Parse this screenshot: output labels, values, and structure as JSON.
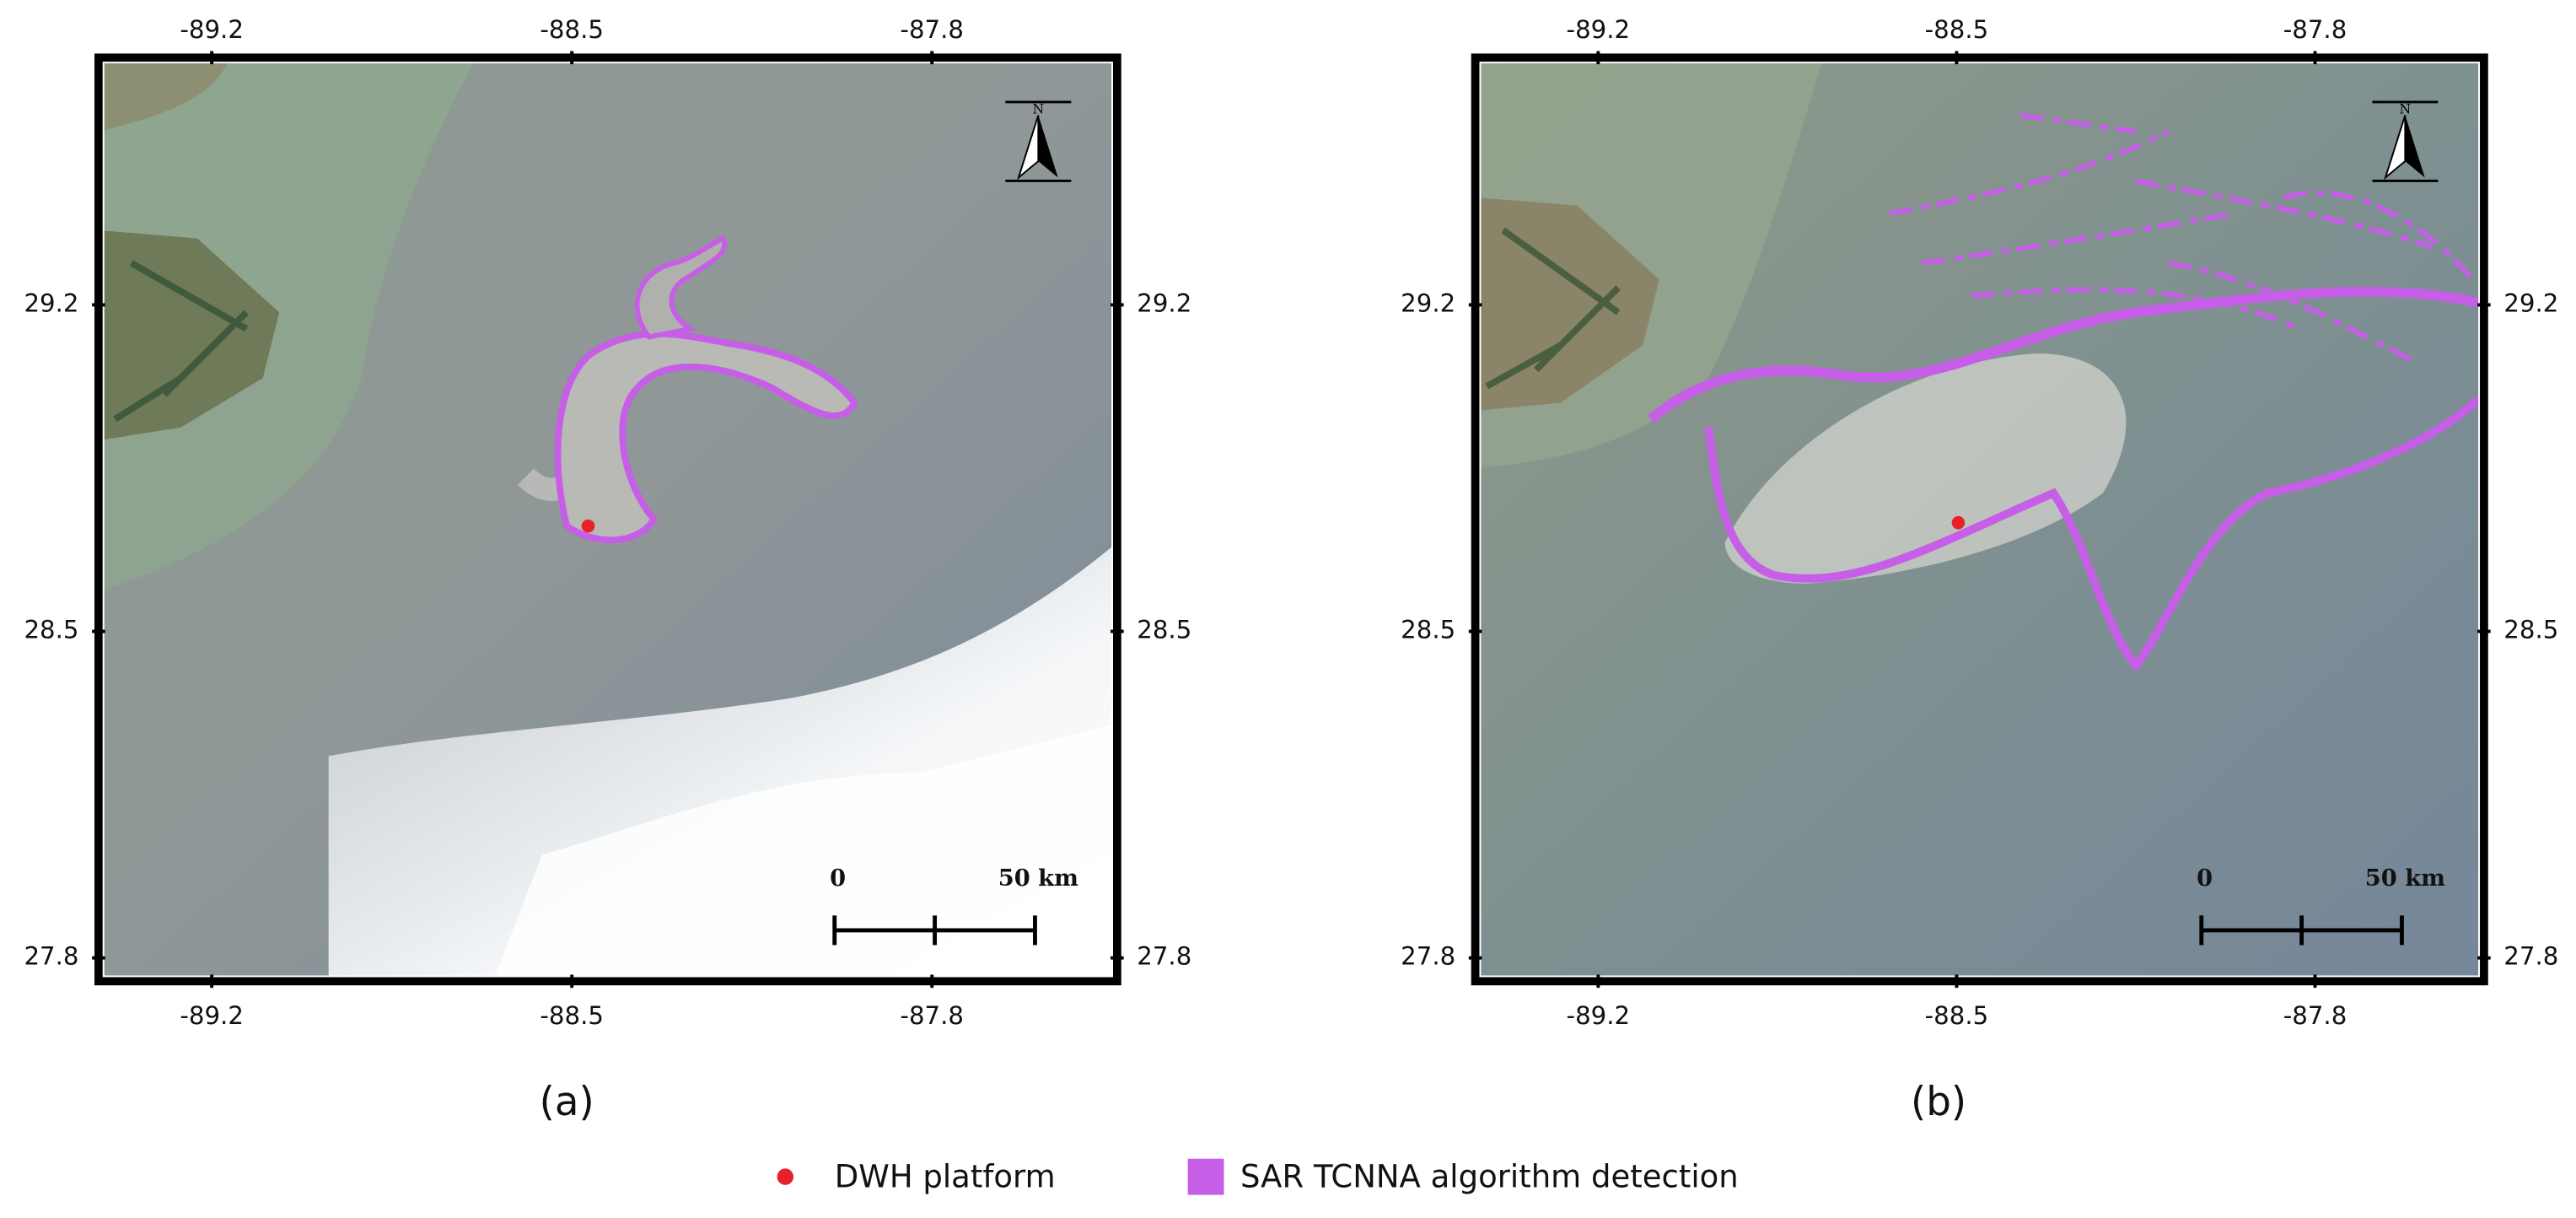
{
  "panels": [
    {
      "label": "(a)",
      "xlim": [
        -89.42,
        -87.44
      ],
      "ylim": [
        27.75,
        29.73
      ],
      "xticks": [
        -89.2,
        -88.5,
        -87.8
      ],
      "yticks": [
        29.2,
        28.5,
        27.8
      ],
      "north": "N",
      "scale_bar": {
        "start": "0",
        "end": "50 km"
      }
    },
    {
      "label": "(b)",
      "xlim": [
        -89.44,
        -87.47
      ],
      "ylim": [
        27.75,
        29.73
      ],
      "xticks": [
        -89.2,
        -88.5,
        -87.8
      ],
      "yticks": [
        29.2,
        28.5,
        27.8
      ],
      "north": "N",
      "scale_bar": {
        "start": "0",
        "end": "50 km"
      }
    }
  ],
  "legend": {
    "items": [
      {
        "name": "DWH platform",
        "color": "#e8202a"
      },
      {
        "name": "SAR TCNNA algorithm detection",
        "color": "#c65ee8"
      }
    ]
  }
}
